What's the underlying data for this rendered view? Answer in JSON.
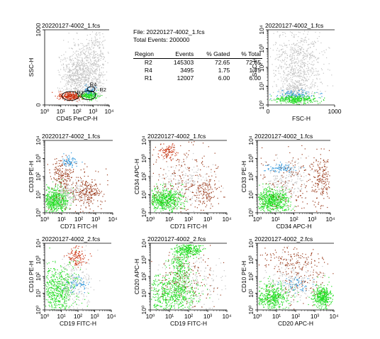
{
  "stats": {
    "file_label": "File: 20220127-4002_1.fcs",
    "total_label": "Total Events: 200000",
    "headers": [
      "Region",
      "Events",
      "% Gated",
      "% Total"
    ],
    "rows": [
      [
        "R2",
        "145303",
        "72.65",
        "72.65"
      ],
      [
        "R4",
        "3495",
        "1.75",
        "1.75"
      ],
      [
        "R1",
        "12007",
        "6.00",
        "6.00"
      ]
    ]
  },
  "colors": {
    "gray": "#c4c4c4",
    "green": "#22dd22",
    "red": "#cc3311",
    "cyan": "#3399dd",
    "brown": "#9b3b1c"
  },
  "chart_data": [
    {
      "type": "scatter",
      "panel": "top-left",
      "title": "20220127-4002_1.fcs",
      "xlabel": "CD45 PerCP-H",
      "ylabel": "SSC-H",
      "xscale": "log",
      "yscale": "linear",
      "xlim": [
        1,
        10000
      ],
      "ylim": [
        0,
        1000
      ],
      "xticks": [
        "10⁰",
        "10¹",
        "10²",
        "10³",
        "10⁴"
      ],
      "yticks": [
        "0",
        "1000"
      ],
      "regions": [
        "R1",
        "R2",
        "R4"
      ]
    },
    {
      "type": "scatter",
      "panel": "top-right",
      "title": "20220127-4002_1.fcs",
      "xlabel": "FSC-H",
      "ylabel": "SSC-H",
      "xscale": "linear",
      "yscale": "log",
      "xlim": [
        0,
        1000
      ],
      "ylim": [
        1,
        10000
      ],
      "xticks": [
        "0",
        "1000"
      ],
      "yticks": [
        "10⁰",
        "10¹",
        "10²",
        "10³",
        "10⁴"
      ]
    },
    {
      "type": "scatter",
      "panel": "mid-left",
      "title": "20220127-4002_1.fcs",
      "xlabel": "CD71 FITC-H",
      "ylabel": "CD33 PE-H",
      "xscale": "log",
      "yscale": "log",
      "xlim": [
        1,
        10000
      ],
      "ylim": [
        1,
        10000
      ],
      "xticks": [
        "10⁰",
        "10¹",
        "10²",
        "10³",
        "10⁴"
      ],
      "yticks": [
        "10⁰",
        "10¹",
        "10²",
        "10³",
        "10⁴"
      ]
    },
    {
      "type": "scatter",
      "panel": "mid-center",
      "title": "20220127-4002_1.fcs",
      "xlabel": "CD71 FITC-H",
      "ylabel": "CD34 APC-H",
      "xscale": "log",
      "yscale": "log",
      "xlim": [
        1,
        10000
      ],
      "ylim": [
        1,
        10000
      ],
      "xticks": [
        "10⁰",
        "10¹",
        "10²",
        "10³",
        "10⁴"
      ],
      "yticks": [
        "10⁰",
        "10¹",
        "10²",
        "10³",
        "10⁴"
      ]
    },
    {
      "type": "scatter",
      "panel": "mid-right",
      "title": "20220127-4002_1.fcs",
      "xlabel": "CD34 APC-H",
      "ylabel": "CD33 PE-H",
      "xscale": "log",
      "yscale": "log",
      "xlim": [
        1,
        10000
      ],
      "ylim": [
        1,
        10000
      ],
      "xticks": [
        "10⁰",
        "10¹",
        "10²",
        "10³",
        "10⁴"
      ],
      "yticks": [
        "10⁰",
        "10¹",
        "10²",
        "10³",
        "10⁴"
      ]
    },
    {
      "type": "scatter",
      "panel": "bottom-left",
      "title": "20220127-4002_2.fcs",
      "xlabel": "CD19 FITC-H",
      "ylabel": "CD10 PE-H",
      "xscale": "log",
      "yscale": "log",
      "xlim": [
        1,
        10000
      ],
      "ylim": [
        1,
        10000
      ],
      "xticks": [
        "10⁰",
        "10¹",
        "10²",
        "10³",
        "10⁴"
      ],
      "yticks": [
        "10⁰",
        "10¹",
        "10²",
        "10³",
        "10⁴"
      ]
    },
    {
      "type": "scatter",
      "panel": "bottom-center",
      "title": "20220127-4002_2.fcs",
      "xlabel": "CD19 FITC-H",
      "ylabel": "CD20 APC-H",
      "xscale": "log",
      "yscale": "log",
      "xlim": [
        1,
        10000
      ],
      "ylim": [
        1,
        10000
      ],
      "xticks": [
        "10⁰",
        "10¹",
        "10²",
        "10³",
        "10⁴"
      ],
      "yticks": [
        "10⁰",
        "10¹",
        "10²",
        "10³",
        "10⁴"
      ]
    },
    {
      "type": "scatter",
      "panel": "bottom-right",
      "title": "20220127-4002_2.fcs",
      "xlabel": "CD20 APC-H",
      "ylabel": "CD10 PE-H",
      "xscale": "log",
      "yscale": "log",
      "xlim": [
        1,
        10000
      ],
      "ylim": [
        1,
        10000
      ],
      "xticks": [
        "10⁰",
        "10¹",
        "10²",
        "10³",
        "10⁴"
      ],
      "yticks": [
        "10⁰",
        "10¹",
        "10²",
        "10³",
        "10⁴"
      ]
    }
  ]
}
